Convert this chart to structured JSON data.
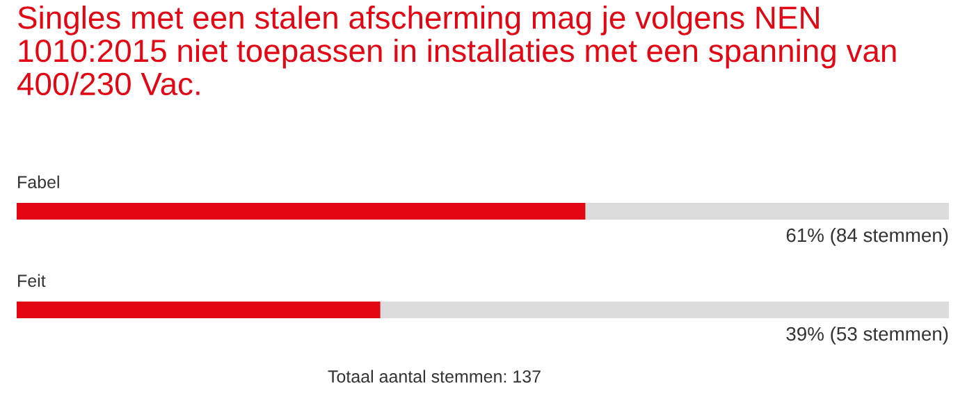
{
  "chart_data": {
    "type": "bar",
    "orientation": "horizontal",
    "title": "Singles met een stalen afscherming mag je volgens NEN 1010:2015 niet toepassen in installaties met een spanning van 400/230 Vac.",
    "categories": [
      "Fabel",
      "Feit"
    ],
    "values": [
      61,
      39
    ],
    "value_labels": [
      "61% (84 stemmen)",
      "39% (53 stemmen)"
    ],
    "color": "#e30613",
    "xlim": [
      0,
      100
    ],
    "tick_labels": false,
    "annotations": [
      "Totaal aantal stemmen: 137"
    ]
  }
}
